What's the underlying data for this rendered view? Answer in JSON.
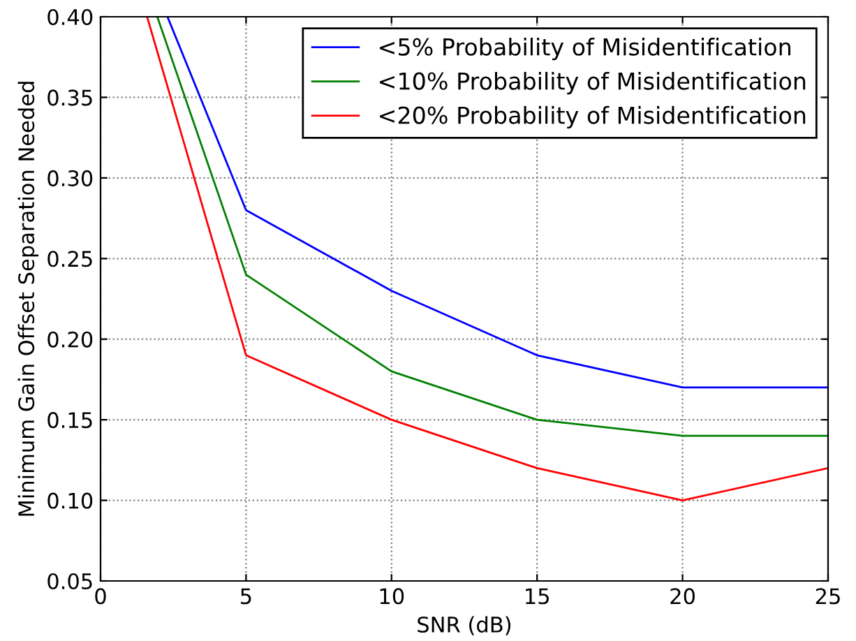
{
  "chart_data": {
    "type": "line",
    "xlabel": "SNR (dB)",
    "ylabel": "Minimum Gain Offset Separation Needed",
    "series": [
      {
        "name": "<5% Probability of Misidentification",
        "color": "#0000ff",
        "x": [
          2.3,
          5,
          10,
          15,
          20,
          25
        ],
        "values": [
          0.4,
          0.28,
          0.23,
          0.19,
          0.17,
          0.17
        ]
      },
      {
        "name": "<10% Probability of Misidentification",
        "color": "#008000",
        "x": [
          1.95,
          5,
          10,
          15,
          20,
          25
        ],
        "values": [
          0.4,
          0.24,
          0.18,
          0.15,
          0.14,
          0.14
        ]
      },
      {
        "name": "<20% Probability of Misidentification",
        "color": "#ff0000",
        "x": [
          1.6,
          5,
          10,
          15,
          20,
          25
        ],
        "values": [
          0.4,
          0.19,
          0.15,
          0.12,
          0.1,
          0.12
        ]
      }
    ],
    "xlim": [
      0,
      25
    ],
    "xticks": [
      0,
      5,
      10,
      15,
      20,
      25
    ],
    "ylim": [
      0.05,
      0.4
    ],
    "yticks": [
      {
        "value": 0.05,
        "label": "0.05"
      },
      {
        "value": 0.1,
        "label": "0.10"
      },
      {
        "value": 0.15,
        "label": "0.15"
      },
      {
        "value": 0.2,
        "label": "0.20"
      },
      {
        "value": 0.25,
        "label": "0.25"
      },
      {
        "value": 0.3,
        "label": "0.30"
      },
      {
        "value": 0.35,
        "label": "0.35"
      },
      {
        "value": 0.4,
        "label": "0.40"
      }
    ],
    "grid": true,
    "legend": "top right",
    "marker": "none",
    "line_style": "solid"
  }
}
